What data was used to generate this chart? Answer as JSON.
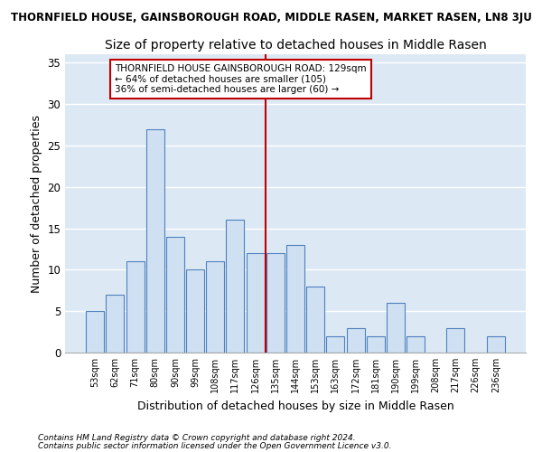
{
  "title": "THORNFIELD HOUSE, GAINSBOROUGH ROAD, MIDDLE RASEN, MARKET RASEN, LN8 3JU",
  "subtitle": "Size of property relative to detached houses in Middle Rasen",
  "xlabel": "Distribution of detached houses by size in Middle Rasen",
  "ylabel": "Number of detached properties",
  "categories": [
    "53sqm",
    "62sqm",
    "71sqm",
    "80sqm",
    "90sqm",
    "99sqm",
    "108sqm",
    "117sqm",
    "126sqm",
    "135sqm",
    "144sqm",
    "153sqm",
    "163sqm",
    "172sqm",
    "181sqm",
    "190sqm",
    "199sqm",
    "208sqm",
    "217sqm",
    "226sqm",
    "236sqm"
  ],
  "values": [
    5,
    7,
    11,
    27,
    14,
    10,
    11,
    16,
    12,
    12,
    13,
    8,
    2,
    3,
    2,
    6,
    2,
    0,
    3,
    0,
    2
  ],
  "bar_color": "#cfe0f2",
  "bar_edge_color": "#4f81bd",
  "vline_color": "#c00000",
  "annotation_title": "THORNFIELD HOUSE GAINSBOROUGH ROAD: 129sqm",
  "annotation_line1": "← 64% of detached houses are smaller (105)",
  "annotation_line2": "36% of semi-detached houses are larger (60) →",
  "annotation_box_color": "#c00000",
  "annotation_bg": "#ffffff",
  "ylim": [
    0,
    36
  ],
  "yticks": [
    0,
    5,
    10,
    15,
    20,
    25,
    30,
    35
  ],
  "footnote1": "Contains HM Land Registry data © Crown copyright and database right 2024.",
  "footnote2": "Contains public sector information licensed under the Open Government Licence v3.0.",
  "bg_color": "#dce9f5",
  "title_fontsize": 8.5,
  "subtitle_fontsize": 10,
  "ylabel_fontsize": 9,
  "xlabel_fontsize": 9,
  "bar_width": 0.9,
  "vline_index": 8.5
}
